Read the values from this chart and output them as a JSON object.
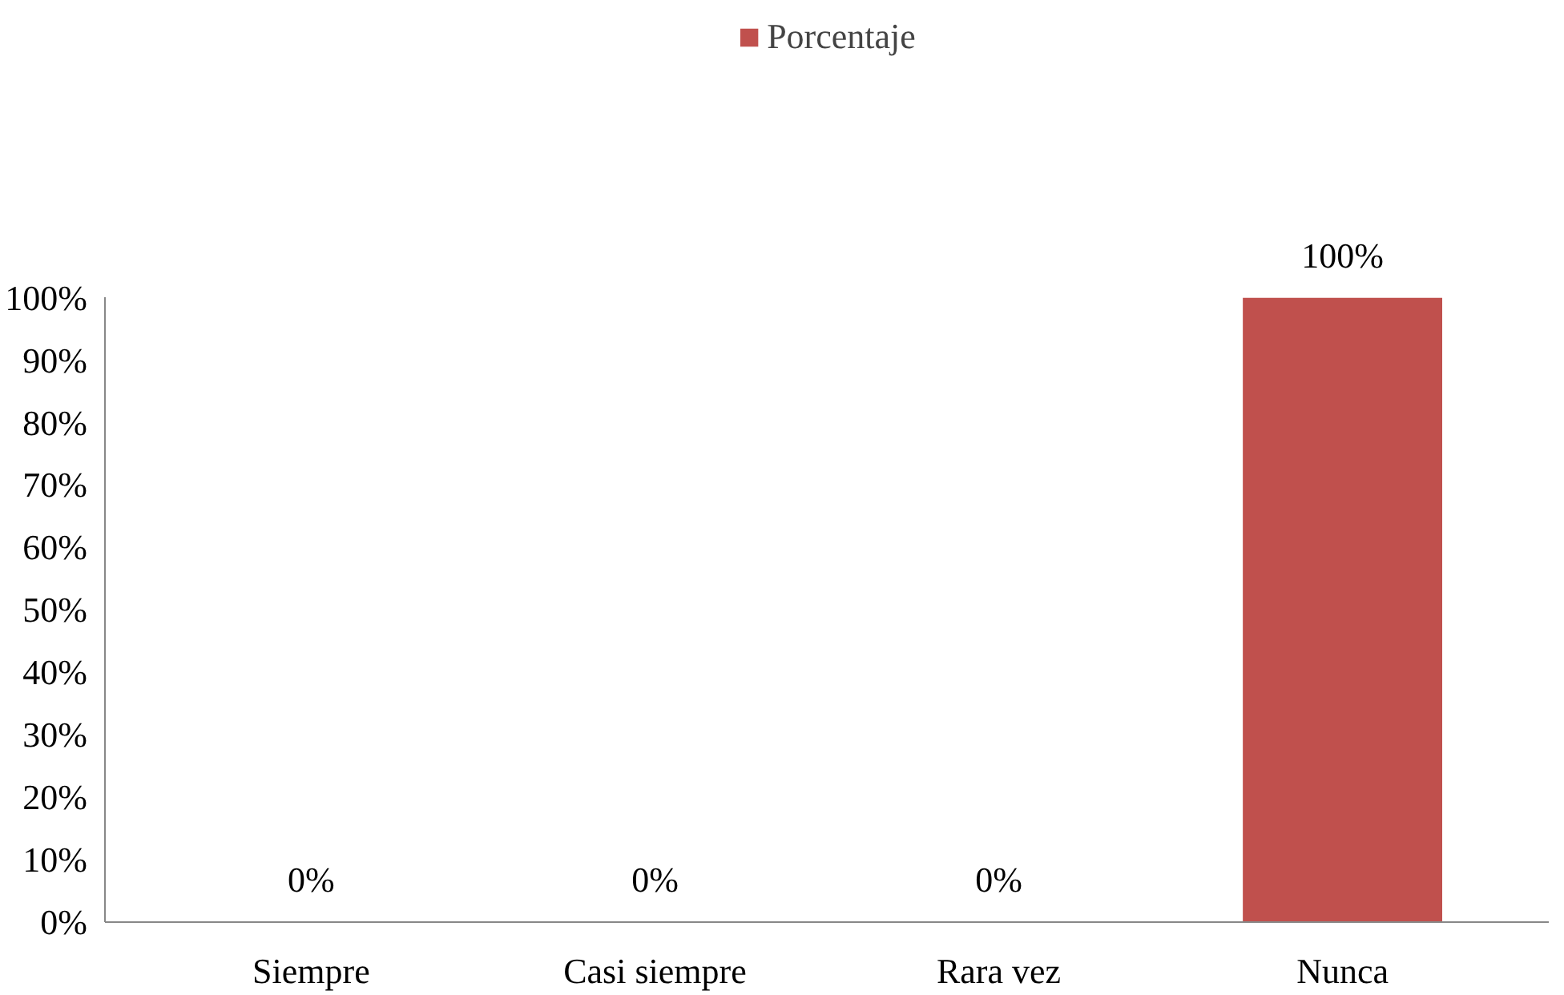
{
  "chart_data": {
    "type": "bar",
    "categories": [
      "Siempre",
      "Casi siempre",
      "Rara vez",
      "Nunca"
    ],
    "series": [
      {
        "name": "Porcentaje",
        "color": "#c0504d",
        "values": [
          0,
          0,
          0,
          100
        ]
      }
    ],
    "value_labels": [
      "0%",
      "0%",
      "0%",
      "100%"
    ],
    "ylim": [
      0,
      100
    ],
    "yticks": [
      {
        "value": 0,
        "label": "0%"
      },
      {
        "value": 10,
        "label": "10%"
      },
      {
        "value": 20,
        "label": "20%"
      },
      {
        "value": 30,
        "label": "30%"
      },
      {
        "value": 40,
        "label": "40%"
      },
      {
        "value": 50,
        "label": "50%"
      },
      {
        "value": 60,
        "label": "60%"
      },
      {
        "value": 70,
        "label": "70%"
      },
      {
        "value": 80,
        "label": "80%"
      },
      {
        "value": 90,
        "label": "90%"
      },
      {
        "value": 100,
        "label": "100%"
      }
    ],
    "grid": false,
    "legend": "top"
  }
}
